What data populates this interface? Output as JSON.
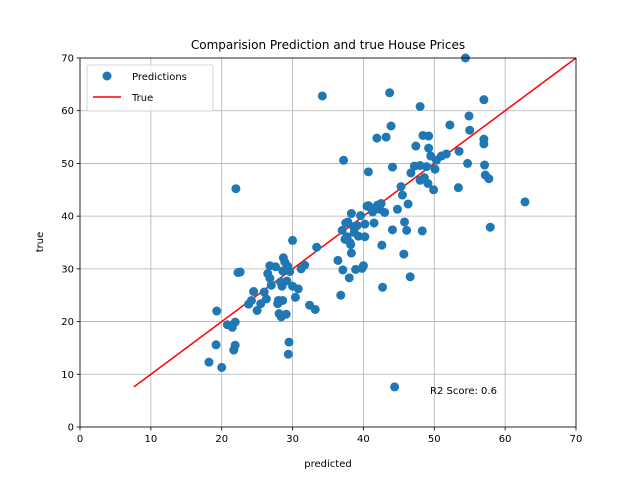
{
  "chart_data": {
    "type": "scatter",
    "title": "Comparision Prediction and true House Prices",
    "xlabel": "predicted",
    "ylabel": "true",
    "xlim": [
      0,
      70
    ],
    "ylim": [
      0,
      70
    ],
    "xticks": [
      0,
      10,
      20,
      30,
      40,
      50,
      60,
      70
    ],
    "yticks": [
      0,
      10,
      20,
      30,
      40,
      50,
      60,
      70
    ],
    "grid": true,
    "legend": {
      "position": "top-left",
      "entries": [
        "Predictions",
        "True"
      ]
    },
    "colors": {
      "points": "#1f77b4",
      "line": "#ff0000"
    },
    "annotation": "R2 Score: 0.6",
    "series": [
      {
        "name": "Predictions",
        "kind": "scatter",
        "points": [
          [
            18.2,
            12.3
          ],
          [
            19.2,
            15.6
          ],
          [
            19.3,
            22.0
          ],
          [
            20.0,
            11.3
          ],
          [
            20.8,
            19.4
          ],
          [
            21.5,
            18.9
          ],
          [
            21.7,
            14.6
          ],
          [
            21.9,
            15.5
          ],
          [
            21.9,
            19.9
          ],
          [
            22.0,
            45.2
          ],
          [
            22.3,
            29.3
          ],
          [
            22.6,
            29.4
          ],
          [
            23.8,
            23.3
          ],
          [
            24.2,
            24.0
          ],
          [
            24.5,
            25.7
          ],
          [
            25.0,
            22.1
          ],
          [
            25.5,
            23.4
          ],
          [
            26.0,
            25.6
          ],
          [
            26.3,
            24.3
          ],
          [
            26.5,
            29.1
          ],
          [
            26.8,
            30.6
          ],
          [
            26.8,
            28.2
          ],
          [
            27.0,
            26.9
          ],
          [
            27.6,
            30.4
          ],
          [
            27.9,
            23.4
          ],
          [
            28.0,
            24.0
          ],
          [
            28.1,
            21.5
          ],
          [
            28.3,
            27.5
          ],
          [
            28.4,
            20.9
          ],
          [
            28.5,
            26.7
          ],
          [
            28.6,
            24.0
          ],
          [
            28.6,
            29.6
          ],
          [
            28.7,
            32.1
          ],
          [
            28.9,
            31.3
          ],
          [
            29.1,
            21.4
          ],
          [
            29.2,
            27.7
          ],
          [
            29.3,
            30.5
          ],
          [
            29.4,
            13.8
          ],
          [
            29.5,
            16.1
          ],
          [
            29.6,
            29.5
          ],
          [
            30.0,
            26.7
          ],
          [
            30.0,
            35.4
          ],
          [
            30.4,
            24.6
          ],
          [
            30.8,
            26.2
          ],
          [
            31.2,
            30.0
          ],
          [
            31.7,
            30.7
          ],
          [
            32.4,
            23.1
          ],
          [
            33.2,
            22.3
          ],
          [
            33.4,
            34.1
          ],
          [
            34.2,
            62.8
          ],
          [
            36.4,
            31.6
          ],
          [
            36.8,
            25.0
          ],
          [
            37.0,
            37.3
          ],
          [
            37.1,
            29.8
          ],
          [
            37.2,
            50.6
          ],
          [
            37.4,
            35.6
          ],
          [
            37.5,
            38.7
          ],
          [
            37.7,
            36.1
          ],
          [
            37.8,
            38.9
          ],
          [
            38.0,
            28.3
          ],
          [
            38.1,
            35.0
          ],
          [
            38.2,
            34.6
          ],
          [
            38.3,
            40.5
          ],
          [
            38.3,
            33.0
          ],
          [
            38.6,
            38.0
          ],
          [
            38.7,
            36.9
          ],
          [
            38.9,
            29.9
          ],
          [
            39.1,
            38.2
          ],
          [
            39.3,
            36.2
          ],
          [
            39.6,
            40.1
          ],
          [
            39.8,
            30.1
          ],
          [
            40.0,
            30.6
          ],
          [
            40.2,
            36.1
          ],
          [
            40.2,
            38.5
          ],
          [
            40.5,
            41.9
          ],
          [
            40.7,
            42.0
          ],
          [
            40.7,
            48.4
          ],
          [
            41.0,
            41.6
          ],
          [
            41.3,
            40.8
          ],
          [
            41.5,
            38.7
          ],
          [
            41.9,
            54.8
          ],
          [
            42.0,
            42.1
          ],
          [
            42.3,
            41.3
          ],
          [
            42.5,
            42.4
          ],
          [
            42.6,
            34.5
          ],
          [
            42.7,
            26.5
          ],
          [
            43.0,
            40.7
          ],
          [
            43.2,
            55.0
          ],
          [
            43.7,
            63.4
          ],
          [
            43.9,
            57.1
          ],
          [
            44.1,
            37.4
          ],
          [
            44.4,
            7.6
          ],
          [
            44.1,
            49.3
          ],
          [
            44.8,
            41.3
          ],
          [
            45.3,
            45.6
          ],
          [
            45.5,
            44.0
          ],
          [
            45.7,
            32.8
          ],
          [
            45.8,
            38.9
          ],
          [
            46.1,
            37.3
          ],
          [
            46.3,
            42.3
          ],
          [
            46.6,
            28.5
          ],
          [
            46.7,
            48.2
          ],
          [
            47.2,
            49.5
          ],
          [
            47.4,
            53.3
          ],
          [
            48.0,
            49.6
          ],
          [
            48.0,
            60.8
          ],
          [
            48.0,
            46.8
          ],
          [
            48.3,
            37.2
          ],
          [
            48.4,
            55.3
          ],
          [
            48.6,
            47.3
          ],
          [
            48.9,
            49.4
          ],
          [
            49.1,
            46.2
          ],
          [
            49.2,
            52.9
          ],
          [
            49.2,
            55.2
          ],
          [
            49.5,
            51.4
          ],
          [
            49.9,
            45.0
          ],
          [
            50.1,
            48.9
          ],
          [
            50.3,
            50.6
          ],
          [
            51.0,
            51.4
          ],
          [
            51.7,
            51.8
          ],
          [
            52.2,
            57.3
          ],
          [
            53.4,
            45.4
          ],
          [
            53.5,
            52.3
          ],
          [
            54.4,
            70.0
          ],
          [
            54.7,
            50.0
          ],
          [
            54.9,
            59.0
          ],
          [
            55.0,
            56.3
          ],
          [
            57.0,
            62.1
          ],
          [
            57.0,
            54.6
          ],
          [
            57.0,
            53.7
          ],
          [
            57.1,
            49.7
          ],
          [
            57.2,
            47.8
          ],
          [
            57.7,
            47.1
          ],
          [
            57.9,
            37.9
          ],
          [
            62.8,
            42.7
          ]
        ]
      },
      {
        "name": "True",
        "kind": "line",
        "points": [
          [
            7.6,
            7.6
          ],
          [
            70.0,
            70.0
          ]
        ]
      }
    ]
  }
}
